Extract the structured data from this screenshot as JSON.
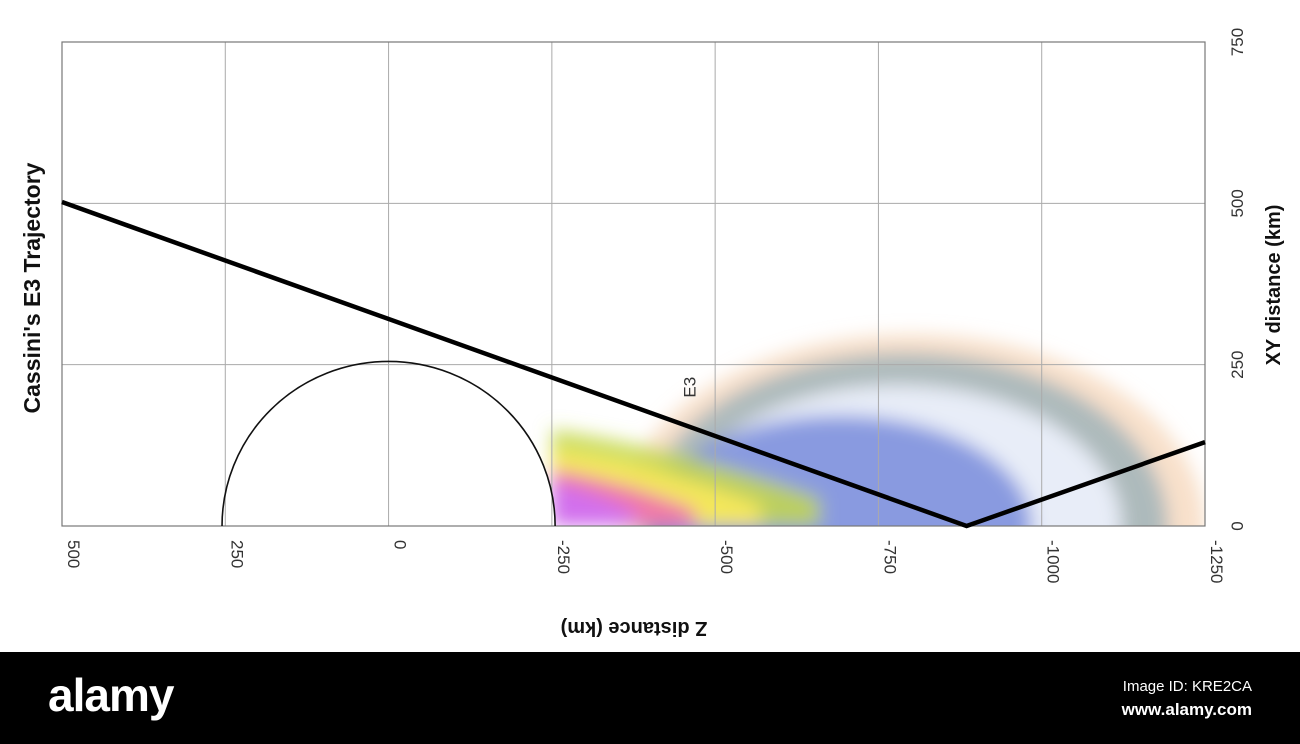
{
  "chart_data": {
    "type": "line",
    "title": "Cassini's E3 Trajectory",
    "xlabel": "Z distance (km)",
    "ylabel": "XY distance (km)",
    "x_ticks": [
      500,
      250,
      0,
      -250,
      -500,
      -750,
      -1000,
      -1250
    ],
    "x_tick_labels": [
      "500",
      "250",
      "0",
      "-250",
      "-500",
      "-750",
      "-1000",
      "-1250"
    ],
    "y_ticks": [
      0,
      250,
      500,
      750
    ],
    "y_tick_labels": [
      "0",
      "250",
      "500",
      "750"
    ],
    "xlim": [
      500,
      -1250
    ],
    "ylim": [
      0,
      750
    ],
    "x_reversed": true,
    "grid": true,
    "series": [
      {
        "name": "E3",
        "x": [
          500,
          -885,
          -1250
        ],
        "y": [
          502,
          0,
          130
        ]
      }
    ],
    "annotations": [
      {
        "text": "E3",
        "x": -470,
        "y": 215
      }
    ],
    "moon_outline": {
      "center_x": 0,
      "center_y": 0,
      "radius": 255
    },
    "plume_density": {
      "colormap": [
        "#d070f0",
        "#f06bb0",
        "#f7e85a",
        "#c4d84a",
        "#6a7fd8",
        "#eef3ff",
        "#6f9bb0",
        "#f2c7a0"
      ]
    }
  },
  "footer": {
    "logo": "alamy",
    "image_id": "Image ID: KRE2CA",
    "url": "www.alamy.com"
  }
}
